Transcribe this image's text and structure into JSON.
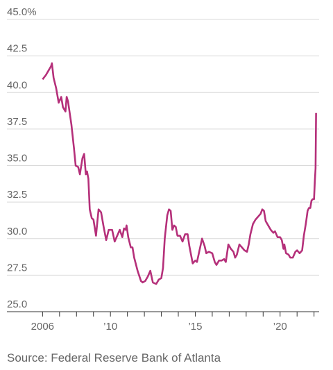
{
  "chart_data": {
    "type": "line",
    "source": "Source: Federal Reserve Bank of Atlanta",
    "color": "#b5307a",
    "x": [
      2006.0,
      2006.2,
      2006.4,
      2006.5,
      2006.55,
      2006.65,
      2006.8,
      2006.95,
      2007.1,
      2007.2,
      2007.35,
      2007.42,
      2007.5,
      2007.7,
      2007.85,
      2007.95,
      2008.1,
      2008.2,
      2008.35,
      2008.45,
      2008.55,
      2008.62,
      2008.7,
      2008.78,
      2008.9,
      2009.0,
      2009.15,
      2009.3,
      2009.45,
      2009.6,
      2009.75,
      2009.9,
      2010.1,
      2010.25,
      2010.4,
      2010.55,
      2010.7,
      2010.8,
      2010.9,
      2010.95,
      2011.05,
      2011.2,
      2011.3,
      2011.4,
      2011.6,
      2011.8,
      2011.9,
      2012.05,
      2012.2,
      2012.35,
      2012.5,
      2012.7,
      2012.85,
      2013.0,
      2013.1,
      2013.2,
      2013.35,
      2013.45,
      2013.55,
      2013.65,
      2013.75,
      2013.85,
      2013.95,
      2014.1,
      2014.25,
      2014.4,
      2014.55,
      2014.65,
      2014.75,
      2014.85,
      2015.0,
      2015.1,
      2015.25,
      2015.4,
      2015.55,
      2015.65,
      2015.8,
      2016.0,
      2016.15,
      2016.25,
      2016.4,
      2016.55,
      2016.7,
      2016.8,
      2016.95,
      2017.1,
      2017.25,
      2017.35,
      2017.45,
      2017.6,
      2017.75,
      2017.9,
      2018.05,
      2018.15,
      2018.25,
      2018.4,
      2018.55,
      2018.7,
      2018.85,
      2018.95,
      2019.05,
      2019.15,
      2019.3,
      2019.45,
      2019.6,
      2019.7,
      2019.85,
      2020.0,
      2020.1,
      2020.2,
      2020.25,
      2020.35,
      2020.5,
      2020.6,
      2020.75,
      2020.9,
      2021.0,
      2021.15,
      2021.3,
      2021.4,
      2021.5,
      2021.55,
      2021.62,
      2021.7,
      2021.78,
      2021.85,
      2021.92,
      2022.0,
      2022.05,
      2022.09,
      2022.12
    ],
    "values": [
      40.9,
      41.2,
      41.6,
      41.8,
      42.0,
      41.0,
      40.3,
      39.3,
      39.7,
      39.0,
      38.7,
      39.7,
      39.4,
      37.8,
      36.2,
      35.0,
      34.9,
      34.4,
      35.5,
      35.8,
      34.4,
      34.6,
      34.1,
      32.0,
      31.4,
      31.3,
      30.2,
      32.0,
      31.8,
      30.8,
      29.9,
      30.6,
      30.6,
      29.8,
      30.2,
      30.6,
      30.1,
      30.7,
      30.6,
      30.9,
      30.1,
      29.4,
      29.4,
      28.7,
      27.8,
      27.1,
      27.0,
      27.1,
      27.4,
      27.8,
      27.0,
      26.9,
      27.2,
      27.3,
      28.0,
      30.0,
      31.6,
      32.0,
      31.9,
      30.6,
      30.9,
      30.8,
      30.2,
      30.2,
      29.8,
      30.3,
      30.3,
      29.5,
      28.9,
      28.3,
      28.5,
      28.4,
      29.2,
      30.0,
      29.5,
      29.0,
      29.1,
      29.0,
      28.4,
      28.2,
      28.5,
      28.5,
      28.6,
      28.4,
      29.6,
      29.3,
      29.1,
      28.7,
      28.9,
      29.6,
      29.4,
      29.2,
      29.1,
      29.6,
      30.3,
      31.0,
      31.3,
      31.5,
      31.7,
      32.0,
      31.9,
      31.2,
      30.9,
      30.6,
      30.4,
      30.5,
      30.1,
      30.1,
      29.9,
      29.3,
      29.6,
      29.0,
      28.9,
      28.7,
      28.7,
      29.1,
      29.2,
      29.0,
      29.2,
      30.2,
      30.9,
      31.3,
      31.9,
      32.1,
      32.1,
      32.6,
      32.7,
      32.7,
      34.0,
      34.8,
      38.6
    ],
    "xlim": [
      2003.9,
      2022.3
    ],
    "ylim": [
      25,
      45
    ],
    "yticks": [
      {
        "value": 25,
        "label": "25.0"
      },
      27.5,
      {
        "value": 30,
        "label": "30.0"
      },
      32.5,
      {
        "value": 35,
        "label": "35.0"
      },
      37.5,
      {
        "value": 40,
        "label": "40.0"
      },
      42.5,
      {
        "value": 45,
        "label": "45.0%"
      }
    ],
    "xticks": [
      {
        "value": 2006,
        "label": "2006"
      },
      {
        "value": 2010,
        "label": "’10"
      },
      {
        "value": 2015,
        "label": "’15"
      },
      {
        "value": 2020,
        "label": "’20"
      }
    ],
    "xminorticks": [
      2007,
      2008,
      2009,
      2011,
      2012,
      2013,
      2014,
      2016,
      2017,
      2018,
      2019,
      2021,
      2022
    ],
    "grid": true
  }
}
